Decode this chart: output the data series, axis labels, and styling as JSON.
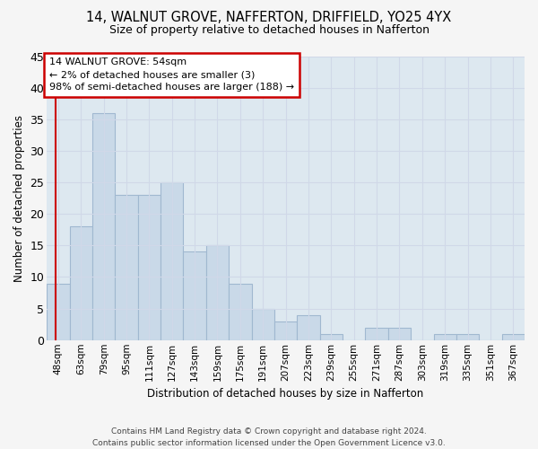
{
  "title": "14, WALNUT GROVE, NAFFERTON, DRIFFIELD, YO25 4YX",
  "subtitle": "Size of property relative to detached houses in Nafferton",
  "xlabel": "Distribution of detached houses by size in Nafferton",
  "ylabel": "Number of detached properties",
  "bar_labels": [
    "48sqm",
    "63sqm",
    "79sqm",
    "95sqm",
    "111sqm",
    "127sqm",
    "143sqm",
    "159sqm",
    "175sqm",
    "191sqm",
    "207sqm",
    "223sqm",
    "239sqm",
    "255sqm",
    "271sqm",
    "287sqm",
    "303sqm",
    "319sqm",
    "335sqm",
    "351sqm",
    "367sqm"
  ],
  "bar_values": [
    9,
    18,
    36,
    23,
    23,
    25,
    14,
    15,
    9,
    5,
    3,
    4,
    1,
    0,
    2,
    2,
    0,
    1,
    1,
    0,
    1
  ],
  "bar_color": "#c9d9e8",
  "bar_edge_color": "#a0b8d0",
  "annotation_box_text": "14 WALNUT GROVE: 54sqm\n← 2% of detached houses are smaller (3)\n98% of semi-detached houses are larger (188) →",
  "annotation_box_color": "#ffffff",
  "annotation_box_edge_color": "#cc0000",
  "marker_line_color": "#cc0000",
  "ylim": [
    0,
    45
  ],
  "yticks": [
    0,
    5,
    10,
    15,
    20,
    25,
    30,
    35,
    40,
    45
  ],
  "grid_color": "#d0d8e8",
  "background_color": "#dde8f0",
  "fig_background_color": "#f5f5f5",
  "footer_line1": "Contains HM Land Registry data © Crown copyright and database right 2024.",
  "footer_line2": "Contains public sector information licensed under the Open Government Licence v3.0."
}
